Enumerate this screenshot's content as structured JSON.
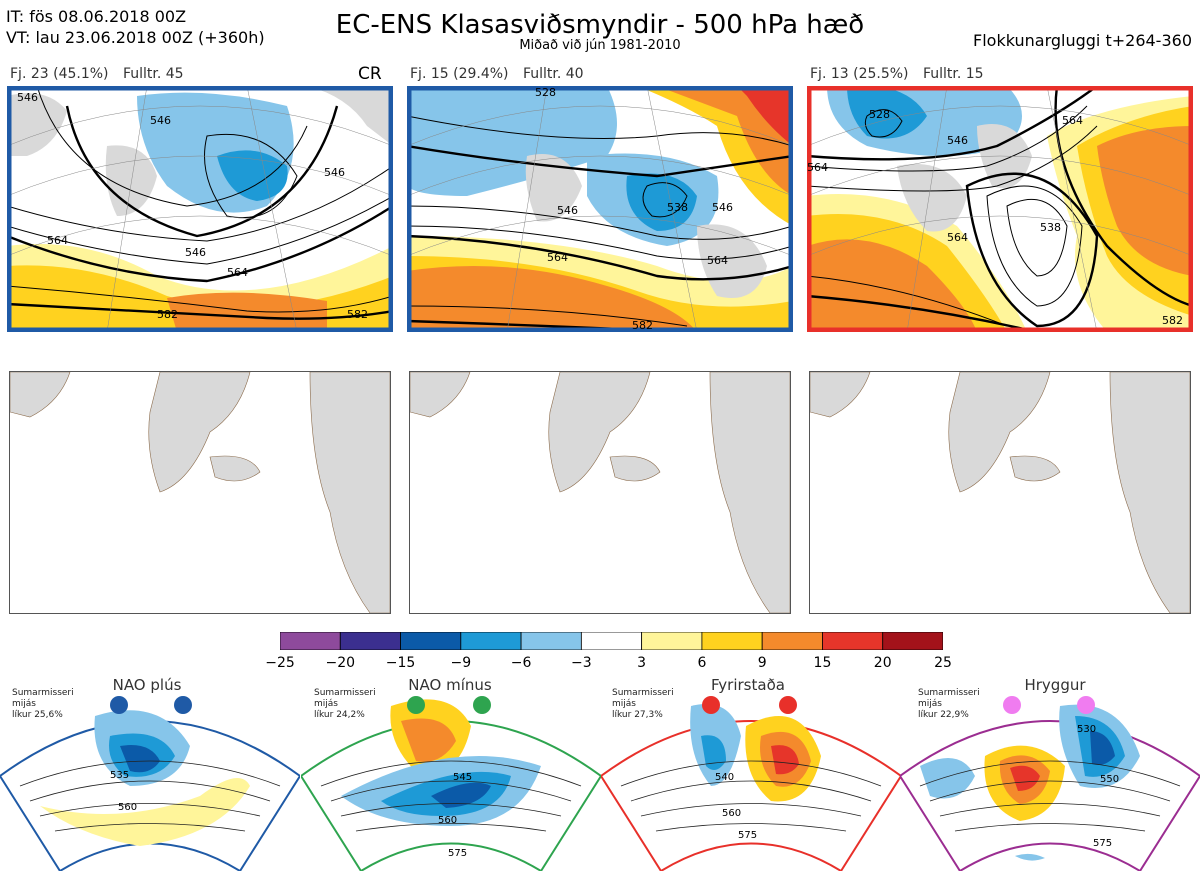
{
  "header": {
    "it": "IT: fös 08.06.2018 00Z",
    "vt": "VT: lau 23.06.2018 00Z  (+360h)",
    "title": "EC-ENS Klasasviðsmyndir - 500 hPa hæð",
    "subtitle": "Miðað við jún 1981-2010",
    "window": "Flokkunargluggi t+264-360"
  },
  "clusters": [
    {
      "fj": "Fj. 23 (45.1%)",
      "fulltr": "Fulltr. 45",
      "tag": "CR",
      "border": "#1f5aa6"
    },
    {
      "fj": "Fj. 15 (29.4%)",
      "fulltr": "Fulltr. 40",
      "tag": "",
      "border": "#1f5aa6"
    },
    {
      "fj": "Fj. 13 (25.5%)",
      "fulltr": "Fulltr. 15",
      "tag": "",
      "border": "#e8302a"
    }
  ],
  "contour_labels": {
    "p1": [
      "546",
      "546",
      "564",
      "546",
      "564",
      "582",
      "582",
      "546"
    ],
    "p2": [
      "528",
      "546",
      "546",
      "538",
      "564",
      "564",
      "582"
    ],
    "p3": [
      "528",
      "546",
      "564",
      "564",
      "538",
      "564",
      "582"
    ]
  },
  "colorbar": {
    "ticks": [
      "−25",
      "−20",
      "−15",
      "−9",
      "−6",
      "−3",
      "3",
      "6",
      "9",
      "15",
      "20",
      "25"
    ],
    "colors": [
      "#8e4a9c",
      "#3b2f8f",
      "#0b5aa8",
      "#1e9ad6",
      "#86c5ea",
      "#ffffff",
      "#fff59a",
      "#ffd21f",
      "#f48a2c",
      "#e6352a",
      "#a3121a"
    ]
  },
  "regimes": [
    {
      "name": "NAO plús",
      "season": "Sumarmisseri",
      "avg": "mijás",
      "prob": "líkur 25,6%",
      "color": "#1f5aa6",
      "labels": [
        "535",
        "560"
      ]
    },
    {
      "name": "NAO mínus",
      "season": "Sumarmisseri",
      "avg": "mijás",
      "prob": "líkur 24,2%",
      "color": "#2ea44f",
      "labels": [
        "545",
        "560",
        "575"
      ]
    },
    {
      "name": "Fyrirstaða",
      "season": "Sumarmisseri",
      "avg": "mijás",
      "prob": "líkur 27,3%",
      "color": "#e8302a",
      "labels": [
        "540",
        "560",
        "575"
      ]
    },
    {
      "name": "Hryggur",
      "season": "Sumarmisseri",
      "avg": "mijás",
      "prob": "líkur 22,9%",
      "color": "#9b2d91",
      "labels": [
        "530",
        "550",
        "575"
      ],
      "dot": "#f07cf0"
    }
  ]
}
